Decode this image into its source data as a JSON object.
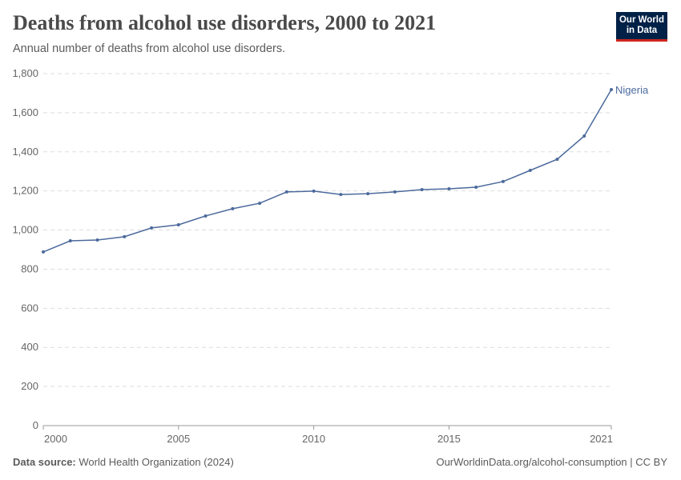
{
  "header": {
    "title": "Deaths from alcohol use disorders, 2000 to 2021",
    "subtitle": "Annual number of deaths from alcohol use disorders.",
    "logo_line1": "Our World",
    "logo_line2": "in Data"
  },
  "footer": {
    "source_label": "Data source:",
    "source": "World Health Organization (2024)",
    "url": "OurWorldinData.org/alcohol-consumption | CC BY"
  },
  "chart_data": {
    "type": "line",
    "title": "Deaths from alcohol use disorders, 2000 to 2021",
    "subtitle": "Annual number of deaths from alcohol use disorders.",
    "x": [
      2000,
      2001,
      2002,
      2003,
      2004,
      2005,
      2006,
      2007,
      2008,
      2009,
      2010,
      2011,
      2012,
      2013,
      2014,
      2015,
      2016,
      2017,
      2018,
      2019,
      2020,
      2021
    ],
    "series": [
      {
        "name": "Nigeria",
        "color": "#4c6a9c",
        "values": [
          888,
          945,
          949,
          966,
          1011,
          1027,
          1072,
          1109,
          1137,
          1195,
          1199,
          1182,
          1186,
          1195,
          1207,
          1211,
          1219,
          1248,
          1305,
          1362,
          1481,
          1718
        ]
      }
    ],
    "xticks": [
      "2000",
      "2005",
      "2010",
      "2015",
      "2021"
    ],
    "yticks": [
      "0",
      "200",
      "400",
      "600",
      "800",
      "1,000",
      "1,200",
      "1,400",
      "1,600",
      "1,800"
    ],
    "xlim": [
      2000,
      2021
    ],
    "ylim": [
      0,
      1800
    ],
    "grid": "horizontal dashed",
    "legend": "end-of-line label"
  }
}
